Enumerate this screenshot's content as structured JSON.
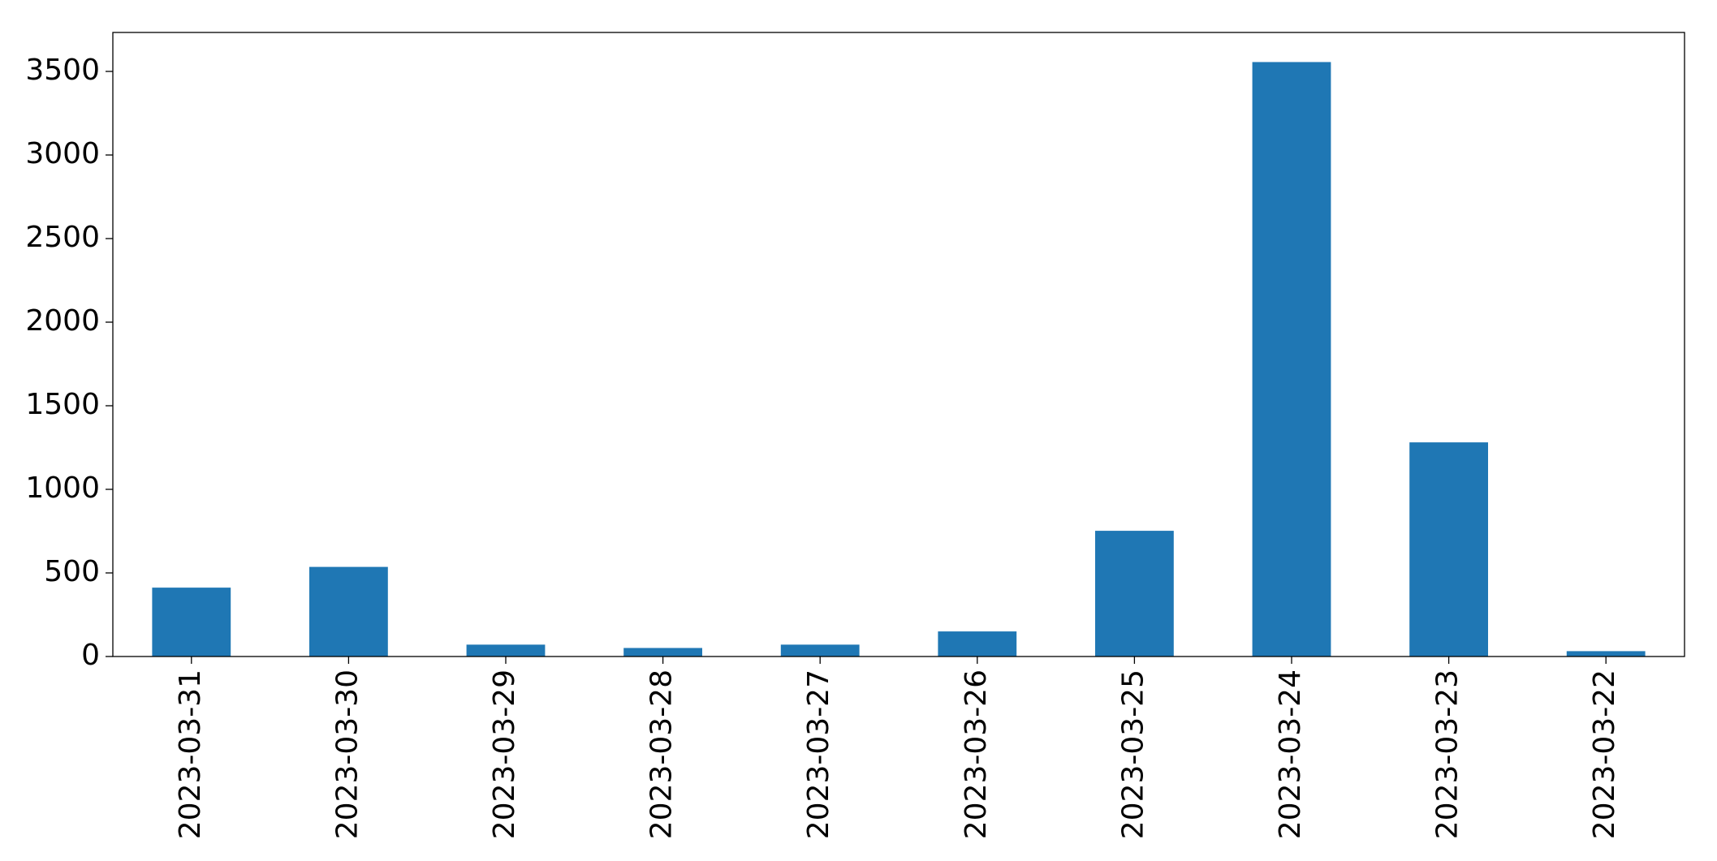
{
  "chart_data": {
    "type": "bar",
    "categories": [
      "2023-03-31",
      "2023-03-30",
      "2023-03-29",
      "2023-03-28",
      "2023-03-27",
      "2023-03-26",
      "2023-03-25",
      "2023-03-24",
      "2023-03-23",
      "2023-03-22"
    ],
    "values": [
      412,
      536,
      71,
      51,
      71,
      150,
      752,
      3556,
      1281,
      32
    ],
    "color": "#1f77b4",
    "ylim": [
      0,
      3733
    ],
    "yticks": [
      0,
      500,
      1000,
      1500,
      2000,
      2500,
      3000,
      3500
    ],
    "grid": false
  }
}
